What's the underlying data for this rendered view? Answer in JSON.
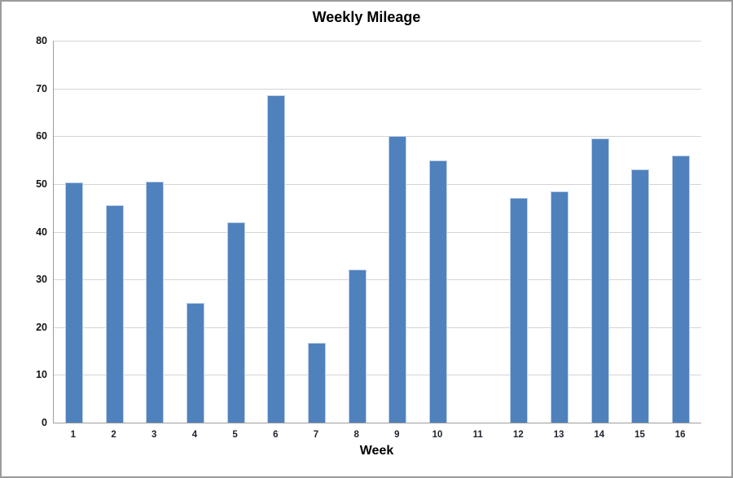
{
  "chart": {
    "title": "Weekly Mileage"
  },
  "chart_data": {
    "type": "bar",
    "title": "Weekly Mileage",
    "xlabel": "Week",
    "ylabel": "",
    "categories": [
      "1",
      "2",
      "3",
      "4",
      "5",
      "6",
      "7",
      "8",
      "9",
      "10",
      "11",
      "12",
      "13",
      "14",
      "15",
      "16"
    ],
    "values": [
      50.3,
      45.5,
      50.5,
      25,
      42,
      68.5,
      16.8,
      32,
      60,
      55,
      0,
      47,
      48.5,
      59.5,
      53,
      56
    ],
    "ylim": [
      0,
      80
    ],
    "ytick_step": 10,
    "yticks": [
      0,
      10,
      20,
      30,
      40,
      50,
      60,
      70,
      80
    ],
    "grid": true,
    "legend": "none",
    "colors": {
      "bar_fill": "#4f81bd",
      "bar_edge": "#bdd0e7",
      "gridline": "#d4d4d4",
      "axis_line": "#9e9e9e",
      "title_text": "#000000",
      "tick_text": "#141414"
    }
  }
}
